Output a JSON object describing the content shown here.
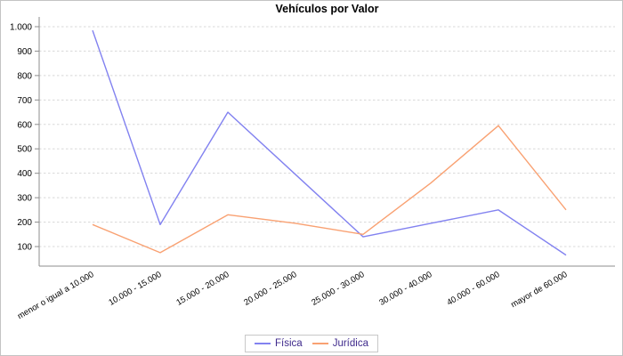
{
  "chart_data": {
    "type": "line",
    "title": "Vehículos por Valor",
    "categories": [
      "menor o igual a 10.000",
      "10.000 - 15.000",
      "15.000 - 20.000",
      "20.000 - 25.000",
      "25.000 - 30.000",
      "30.000 - 40.000",
      "40.000 - 60.000",
      "mayor de 60.000"
    ],
    "series": [
      {
        "name": "Física",
        "color": "#8282f0",
        "values": [
          985,
          190,
          650,
          395,
          140,
          195,
          250,
          65
        ]
      },
      {
        "name": "Jurídica",
        "color": "#f9a172",
        "values": [
          190,
          75,
          230,
          195,
          150,
          360,
          595,
          250
        ]
      }
    ],
    "xlabel": "",
    "ylabel": "",
    "ylim": [
      20,
      1040
    ],
    "yticks": [
      100,
      200,
      300,
      400,
      500,
      600,
      700,
      800,
      900,
      1000
    ],
    "ytick_labels": [
      "100",
      "200",
      "300",
      "400",
      "500",
      "600",
      "700",
      "800",
      "900",
      "1.000"
    ],
    "grid": "horizontal-dashed",
    "legend_position": "bottom",
    "colors": {
      "axis": "#8c8c8c",
      "grid": "#d8d8d8",
      "tick_text": "#000000",
      "title_text": "#000000",
      "legend_text": "#3f2a8c",
      "legend_border": "#c8c8c8",
      "background": "#ffffff"
    }
  }
}
